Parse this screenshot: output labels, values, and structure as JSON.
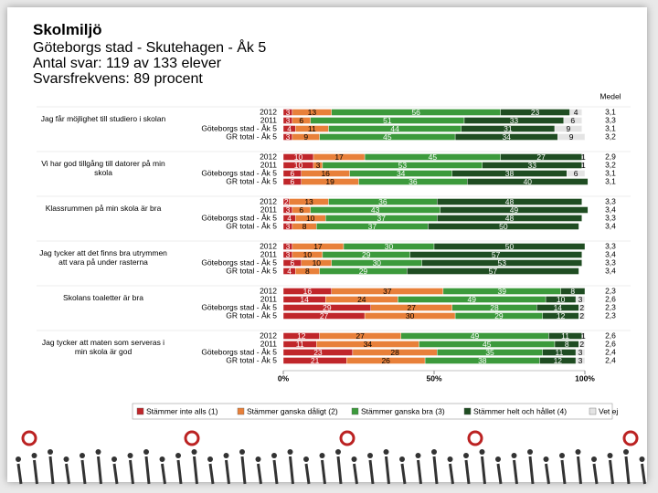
{
  "chart_data": {
    "type": "stacked_bar",
    "orientation": "horizontal",
    "title": "Skolmiljö",
    "subtitle": "Göteborgs stad - Skutehagen - Åk 5",
    "responses": "Antal svar: 119 av 133 elever",
    "response_rate": "Svarsfrekvens: 89 procent",
    "mean_header": "Medel",
    "groups": [
      {
        "question": "Jag får möjlighet till studiero i skolan",
        "row_labels": [
          "2012",
          "2011",
          "Göteborgs stad - Åk 5",
          "GR total - Åk 5"
        ]
      },
      {
        "question": "Vi har god tillgång till datorer på min skola",
        "row_labels": [
          "2012",
          "2011",
          "Göteborgs stad - Åk 5",
          "GR total - Åk 5"
        ]
      },
      {
        "question": "Klassrummen på min skola är bra",
        "row_labels": [
          "2012",
          "2011",
          "Göteborgs stad - Åk 5",
          "GR total - Åk 5"
        ]
      },
      {
        "question": "Jag tycker att det finns bra utrymmen att vara på under rasterna",
        "row_labels": [
          "2012",
          "2011",
          "Göteborgs stad - Åk 5",
          "GR total - Åk 5"
        ]
      },
      {
        "question": "Skolans toaletter är bra",
        "row_labels": [
          "2012",
          "2011",
          "Göteborgs stad - Åk 5",
          "GR total - Åk 5"
        ]
      },
      {
        "question": "Jag tycker att maten som serveras i min skola är god",
        "row_labels": [
          "2012",
          "2011",
          "Göteborgs stad - Åk 5",
          "GR total - Åk 5"
        ]
      }
    ],
    "series": [
      {
        "name": "Stämmer inte alls (1)",
        "color": "#c0262a",
        "values": [
          3,
          3,
          4,
          3,
          10,
          10,
          6,
          6,
          2,
          3,
          4,
          3,
          3,
          3,
          6,
          4,
          16,
          14,
          29,
          27,
          12,
          11,
          23,
          21
        ]
      },
      {
        "name": "Stämmer ganska dåligt (2)",
        "color": "#e8803a",
        "values": [
          13,
          6,
          11,
          9,
          17,
          3,
          16,
          19,
          13,
          6,
          10,
          8,
          17,
          10,
          10,
          8,
          37,
          24,
          27,
          30,
          27,
          34,
          28,
          26
        ]
      },
      {
        "name": "Stämmer ganska bra (3)",
        "color": "#3c9a3c",
        "values": [
          56,
          51,
          44,
          45,
          45,
          53,
          34,
          36,
          36,
          43,
          37,
          37,
          30,
          29,
          30,
          29,
          39,
          49,
          28,
          29,
          49,
          45,
          35,
          38
        ]
      },
      {
        "name": "Stämmer helt och hållet (4)",
        "color": "#1f4d22",
        "values": [
          23,
          33,
          31,
          34,
          27,
          33,
          38,
          40,
          48,
          49,
          48,
          50,
          50,
          57,
          53,
          57,
          8,
          10,
          14,
          12,
          11,
          8,
          11,
          12
        ]
      },
      {
        "name": "Vet ej",
        "color": "#e4e4e4",
        "values": [
          4,
          6,
          9,
          9,
          1,
          1,
          6,
          0,
          0,
          0,
          0,
          0,
          0,
          0,
          0,
          0,
          0,
          3,
          2,
          2,
          1,
          2,
          3,
          3
        ]
      }
    ],
    "means": [
      "3,1",
      "3,3",
      "3,1",
      "3,2",
      "2,9",
      "3,2",
      "3,1",
      "3,1",
      "3,3",
      "3,4",
      "3,3",
      "3,4",
      "3,3",
      "3,4",
      "3,3",
      "3,4",
      "2,3",
      "2,6",
      "2,3",
      "2,3",
      "2,6",
      "2,6",
      "2,4",
      "2,4"
    ],
    "xlim": [
      0,
      100
    ],
    "xticks": [
      {
        "value": 0,
        "label": "0%"
      },
      {
        "value": 50,
        "label": "50%"
      },
      {
        "value": 100,
        "label": "100%"
      }
    ],
    "grid": false,
    "legend": "bottom"
  }
}
